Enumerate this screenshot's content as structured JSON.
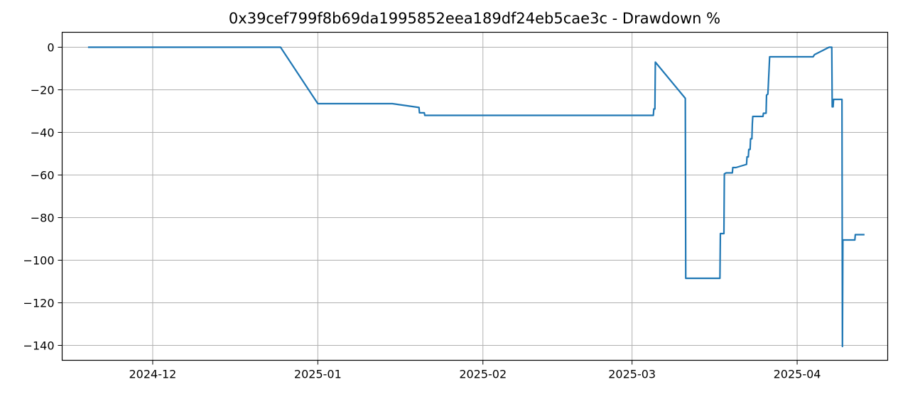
{
  "chart_data": {
    "type": "line",
    "title": "0x39cef799f8b69da1995852eea189df24eb5cae3c - Drawdown %",
    "xlabel": "",
    "ylabel": "",
    "xaxis_type": "date",
    "xlim": [
      "2024-11-14",
      "2025-04-18"
    ],
    "ylim": [
      -147,
      7
    ],
    "grid": true,
    "x_ticks": [
      "2024-12-01",
      "2025-01-01",
      "2025-02-01",
      "2025-03-01",
      "2025-04-01"
    ],
    "x_tick_labels": [
      "2024-12",
      "2025-01",
      "2025-02",
      "2025-03",
      "2025-04"
    ],
    "y_ticks": [
      0,
      -20,
      -40,
      -60,
      -80,
      -100,
      -120,
      -140
    ],
    "y_tick_labels": [
      "0",
      "−20",
      "−40",
      "−60",
      "−80",
      "−100",
      "−120",
      "−140"
    ],
    "series": [
      {
        "color": "#1f77b4",
        "points": [
          [
            "2024-11-19T00:00",
            0
          ],
          [
            "2024-12-25T00:00",
            0
          ],
          [
            "2025-01-01T00:00",
            -26.5
          ],
          [
            "2025-01-15T00:00",
            -26.5
          ],
          [
            "2025-01-20T00:00",
            -28.3
          ],
          [
            "2025-01-20T02:00",
            -30.8
          ],
          [
            "2025-01-21T00:00",
            -30.8
          ],
          [
            "2025-01-21T02:00",
            -32
          ],
          [
            "2025-03-05T00:00",
            -32
          ],
          [
            "2025-03-05T02:00",
            -29
          ],
          [
            "2025-03-05T07:00",
            -29
          ],
          [
            "2025-03-05T09:00",
            -7
          ],
          [
            "2025-03-11T00:00",
            -24
          ],
          [
            "2025-03-11T02:00",
            -108.5
          ],
          [
            "2025-03-17T12:00",
            -108.5
          ],
          [
            "2025-03-17T14:00",
            -87.5
          ],
          [
            "2025-03-18T06:00",
            -87.5
          ],
          [
            "2025-03-18T08:00",
            -59.5
          ],
          [
            "2025-03-18T16:00",
            -59
          ],
          [
            "2025-03-19T20:00",
            -59
          ],
          [
            "2025-03-19T22:00",
            -56.5
          ],
          [
            "2025-03-20T12:00",
            -56.5
          ],
          [
            "2025-03-22T12:00",
            -55
          ],
          [
            "2025-03-22T14:00",
            -51.5
          ],
          [
            "2025-03-22T20:00",
            -51.5
          ],
          [
            "2025-03-22T22:00",
            -48
          ],
          [
            "2025-03-23T04:00",
            -48
          ],
          [
            "2025-03-23T06:00",
            -43
          ],
          [
            "2025-03-23T12:00",
            -43
          ],
          [
            "2025-03-23T14:00",
            -36
          ],
          [
            "2025-03-23T16:00",
            -32.5
          ],
          [
            "2025-03-25T14:00",
            -32.5
          ],
          [
            "2025-03-25T16:00",
            -31
          ],
          [
            "2025-03-26T04:00",
            -31
          ],
          [
            "2025-03-26T06:00",
            -22.5
          ],
          [
            "2025-03-26T12:00",
            -22
          ],
          [
            "2025-03-26T14:00",
            -18
          ],
          [
            "2025-03-26T20:00",
            -4.5
          ],
          [
            "2025-04-04T00:00",
            -4.5
          ],
          [
            "2025-04-04T06:00",
            -3.5
          ],
          [
            "2025-04-07T00:00",
            0
          ],
          [
            "2025-04-07T12:00",
            0
          ],
          [
            "2025-04-07T14:00",
            -28
          ],
          [
            "2025-04-07T16:00",
            -27
          ],
          [
            "2025-04-07T18:00",
            -28
          ],
          [
            "2025-04-07T20:00",
            -24.5
          ],
          [
            "2025-04-09T10:00",
            -24.5
          ],
          [
            "2025-04-09T12:00",
            -140.5
          ],
          [
            "2025-04-09T14:00",
            -90.5
          ],
          [
            "2025-04-11T20:00",
            -90.5
          ],
          [
            "2025-04-11T22:00",
            -88
          ],
          [
            "2025-04-13T12:00",
            -88
          ]
        ]
      }
    ]
  }
}
